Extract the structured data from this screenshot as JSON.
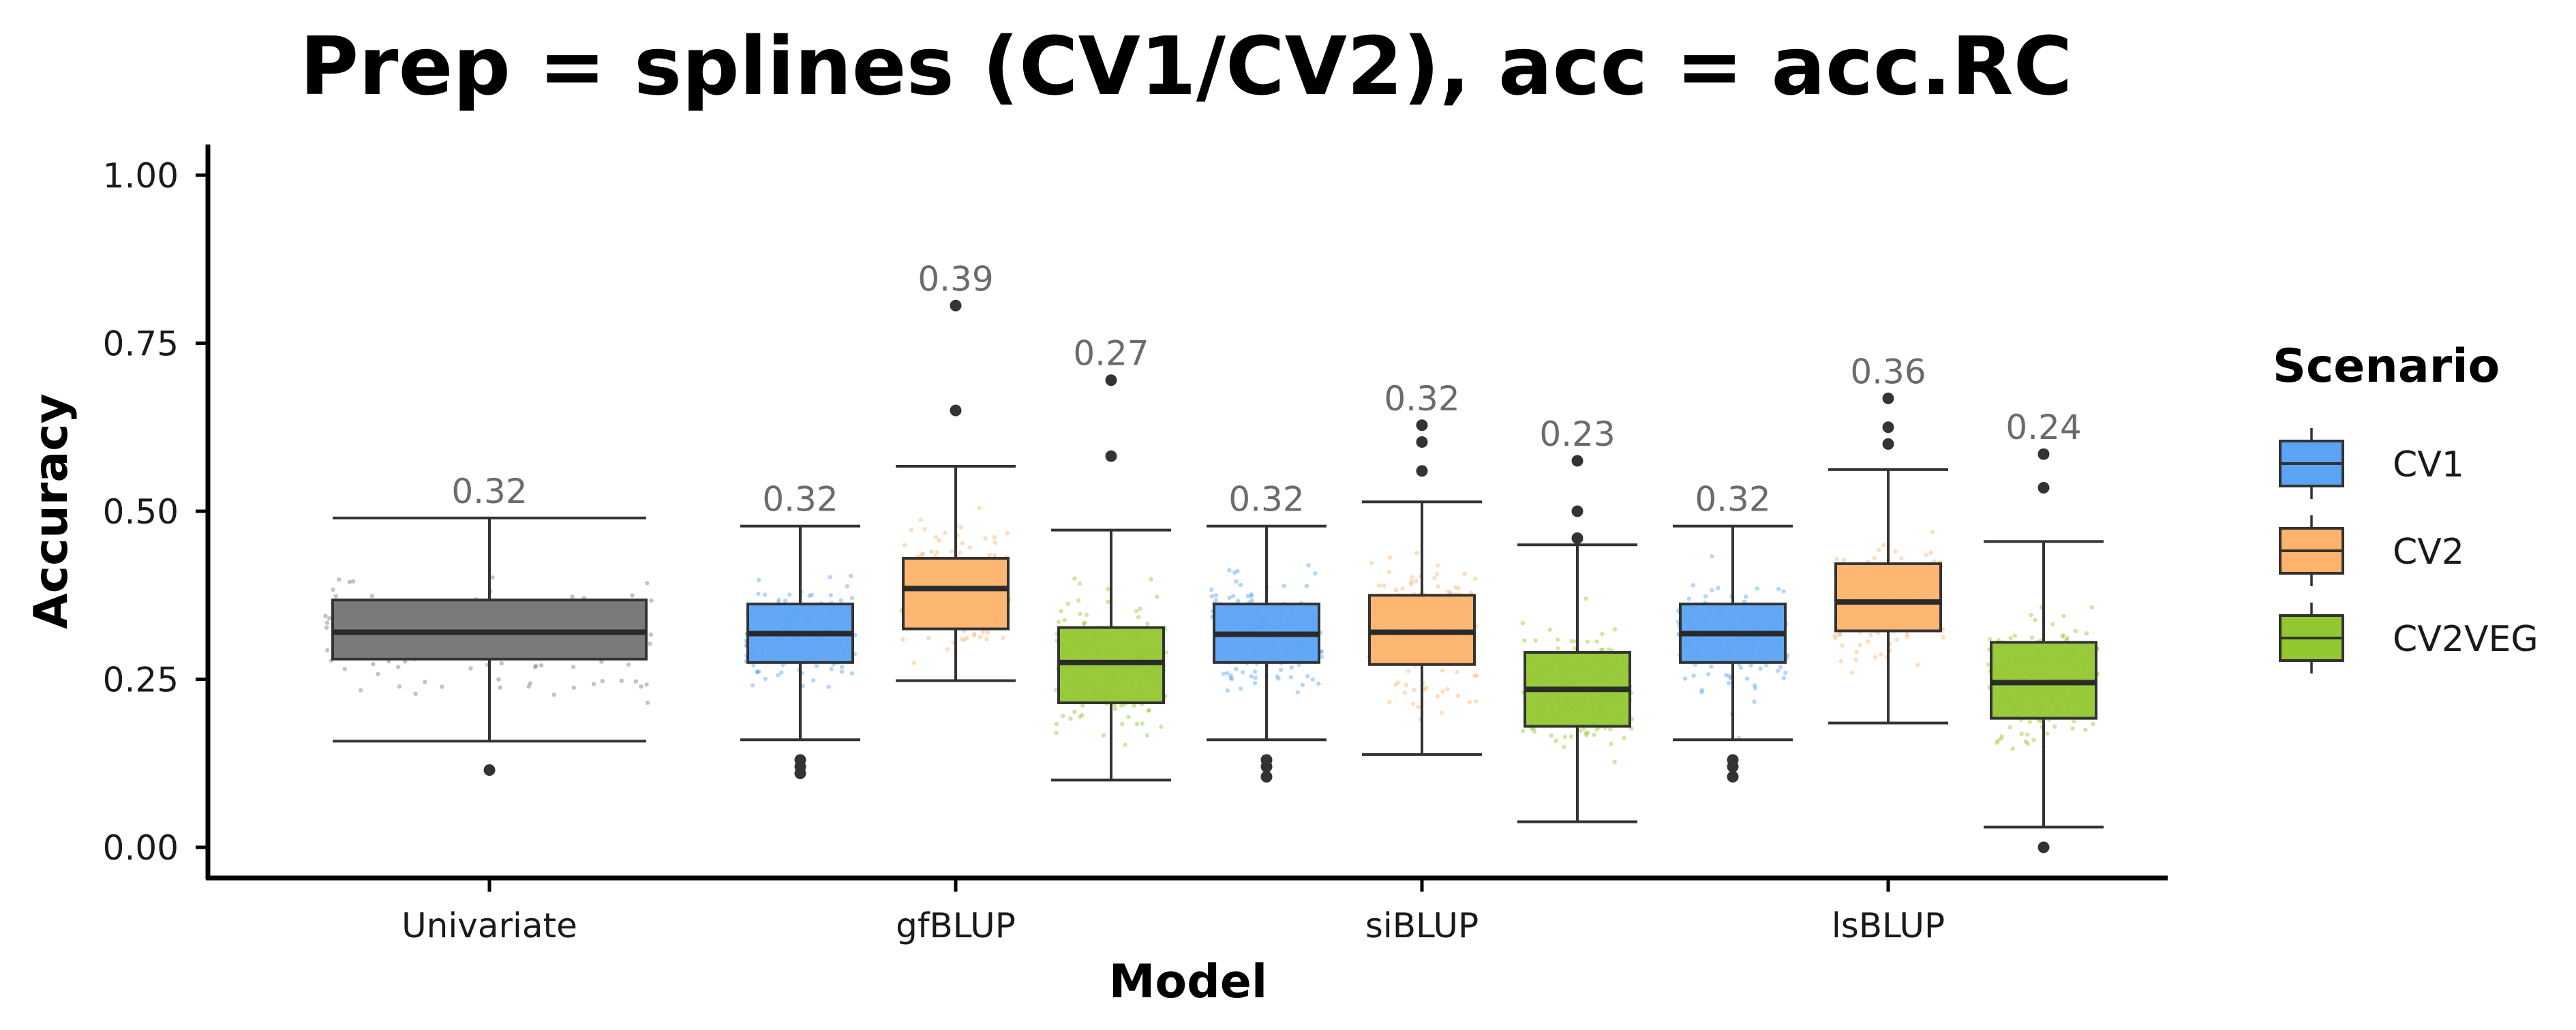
{
  "chart_data": {
    "type": "box",
    "title": "Prep = splines (CV1/CV2), acc = acc.RC",
    "xlabel": "Model",
    "ylabel": "Accuracy",
    "ylim": [
      -0.04,
      1.04
    ],
    "yticks": [
      0.0,
      0.25,
      0.5,
      0.75,
      1.0
    ],
    "ytick_labels": [
      "0.00",
      "0.25",
      "0.50",
      "0.75",
      "1.00"
    ],
    "categories": [
      "Univariate",
      "gfBLUP",
      "siBLUP",
      "lsBLUP"
    ],
    "grid": false,
    "legend": {
      "title": "Scenario",
      "position": "right",
      "entries": [
        {
          "label": "CV1",
          "color": "#5ba3f5"
        },
        {
          "label": "CV2",
          "color": "#fdb36b"
        },
        {
          "label": "CV2VEG",
          "color": "#92c730"
        }
      ]
    },
    "boxes": [
      {
        "category": "Univariate",
        "scenario": null,
        "color": "#7a7a7a",
        "whisker_low": 0.158,
        "q1": 0.28,
        "median": 0.32,
        "q3": 0.368,
        "whisker_high": 0.49,
        "outliers": [
          0.115
        ],
        "label": "0.32"
      },
      {
        "category": "gfBLUP",
        "scenario": "CV1",
        "color": "#5ba3f5",
        "whisker_low": 0.16,
        "q1": 0.275,
        "median": 0.318,
        "q3": 0.362,
        "whisker_high": 0.478,
        "outliers": [
          0.13,
          0.12,
          0.11
        ],
        "label": "0.32"
      },
      {
        "category": "gfBLUP",
        "scenario": "CV2",
        "color": "#fdb36b",
        "whisker_low": 0.248,
        "q1": 0.325,
        "median": 0.385,
        "q3": 0.43,
        "whisker_high": 0.567,
        "outliers": [
          0.65,
          0.806
        ],
        "label": "0.39"
      },
      {
        "category": "gfBLUP",
        "scenario": "CV2VEG",
        "color": "#92c730",
        "whisker_low": 0.1,
        "q1": 0.215,
        "median": 0.275,
        "q3": 0.327,
        "whisker_high": 0.472,
        "outliers": [
          0.582,
          0.695
        ],
        "label": "0.27"
      },
      {
        "category": "siBLUP",
        "scenario": "CV1",
        "color": "#5ba3f5",
        "whisker_low": 0.16,
        "q1": 0.275,
        "median": 0.317,
        "q3": 0.362,
        "whisker_high": 0.478,
        "outliers": [
          0.13,
          0.12,
          0.105
        ],
        "label": "0.32"
      },
      {
        "category": "siBLUP",
        "scenario": "CV2",
        "color": "#fdb36b",
        "whisker_low": 0.138,
        "q1": 0.272,
        "median": 0.32,
        "q3": 0.375,
        "whisker_high": 0.514,
        "outliers": [
          0.56,
          0.603,
          0.628
        ],
        "label": "0.32"
      },
      {
        "category": "siBLUP",
        "scenario": "CV2VEG",
        "color": "#92c730",
        "whisker_low": 0.038,
        "q1": 0.18,
        "median": 0.235,
        "q3": 0.29,
        "whisker_high": 0.45,
        "outliers": [
          0.46,
          0.5,
          0.575
        ],
        "label": "0.23"
      },
      {
        "category": "lsBLUP",
        "scenario": "CV1",
        "color": "#5ba3f5",
        "whisker_low": 0.16,
        "q1": 0.275,
        "median": 0.318,
        "q3": 0.362,
        "whisker_high": 0.478,
        "outliers": [
          0.13,
          0.12,
          0.105
        ],
        "label": "0.32"
      },
      {
        "category": "lsBLUP",
        "scenario": "CV2",
        "color": "#fdb36b",
        "whisker_low": 0.185,
        "q1": 0.322,
        "median": 0.365,
        "q3": 0.422,
        "whisker_high": 0.562,
        "outliers": [
          0.6,
          0.625,
          0.668
        ],
        "label": "0.36"
      },
      {
        "category": "lsBLUP",
        "scenario": "CV2VEG",
        "color": "#92c730",
        "whisker_low": 0.03,
        "q1": 0.192,
        "median": 0.245,
        "q3": 0.305,
        "whisker_high": 0.455,
        "outliers": [
          0.0,
          0.535,
          0.585
        ],
        "label": "0.24"
      }
    ]
  }
}
